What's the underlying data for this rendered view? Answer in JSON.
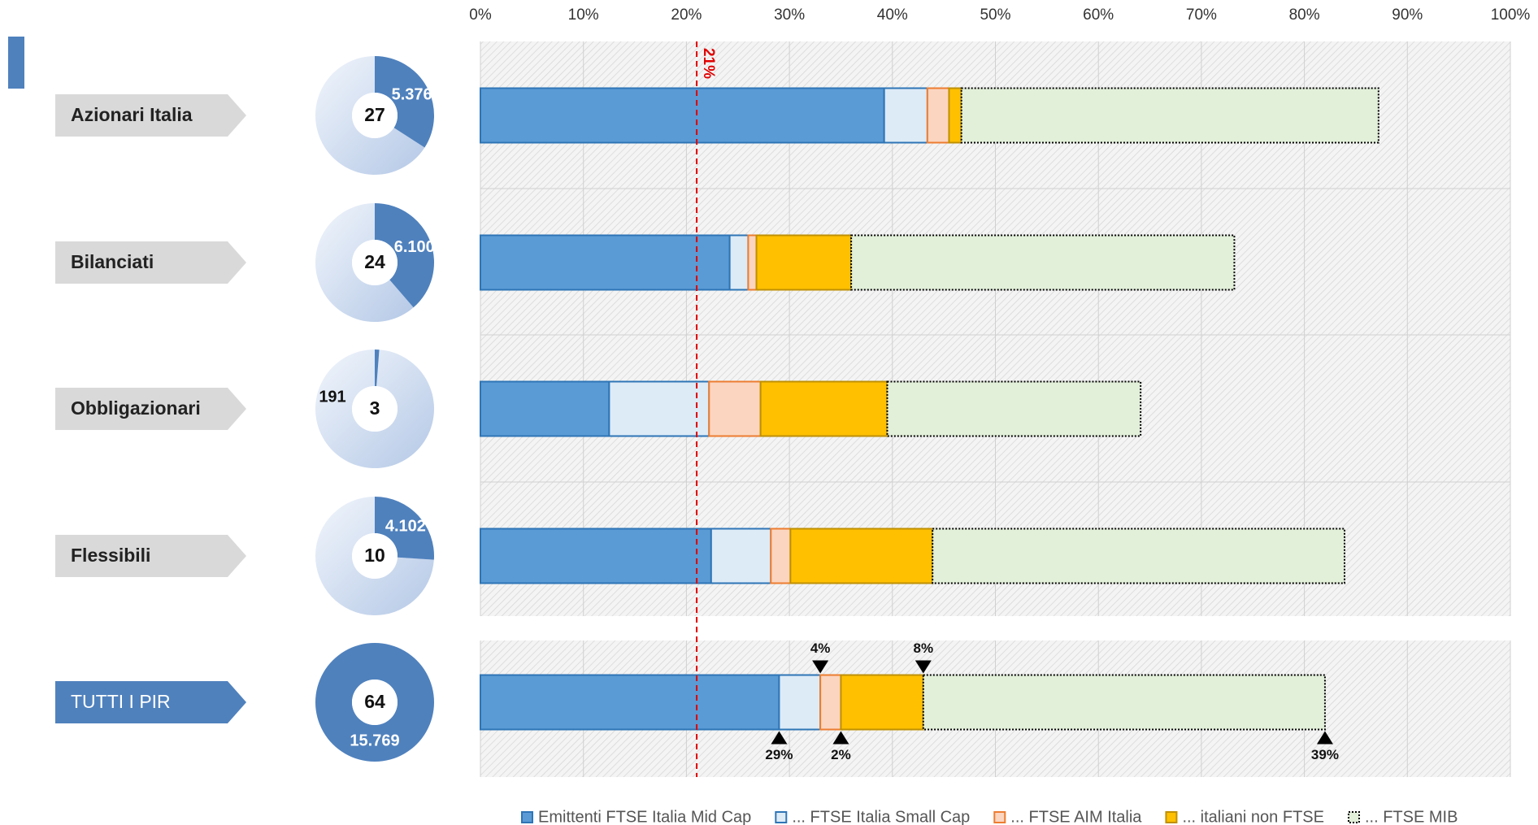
{
  "chart_data": {
    "type": "stacked_bar_horizontal",
    "categories": [
      "Azionari Italia",
      "Bilanciati",
      "Obbligazionari",
      "Flessibili",
      "TUTTI I PIR"
    ],
    "series": [
      {
        "name": "Emittenti FTSE Italia Mid Cap",
        "color": "#5b9bd5",
        "values": [
          39.2,
          24.2,
          12.5,
          22.4,
          29
        ],
        "value_labels": [
          null,
          null,
          null,
          null,
          "29%"
        ]
      },
      {
        "name": "... FTSE Italia Small Cap",
        "color": "#ddebf7",
        "values": [
          4.2,
          1.8,
          9.7,
          5.8,
          4
        ],
        "value_labels": [
          null,
          null,
          null,
          null,
          "4%"
        ]
      },
      {
        "name": "... FTSE AIM Italia",
        "color": "#fbd5c0",
        "values": [
          2.1,
          0.8,
          5,
          1.9,
          2
        ],
        "value_labels": [
          null,
          null,
          null,
          null,
          "2%"
        ]
      },
      {
        "name": "... italiani non FTSE",
        "color": "#ffc000",
        "values": [
          1.2,
          9.2,
          12.3,
          13.8,
          8
        ],
        "value_labels": [
          null,
          null,
          null,
          null,
          "8%"
        ]
      },
      {
        "name": "... FTSE MIB",
        "color": "#e2efd9",
        "values": [
          40.5,
          37.2,
          24.6,
          40,
          39
        ],
        "value_labels": [
          null,
          null,
          null,
          null,
          "39%"
        ]
      }
    ],
    "xlim": [
      0,
      100
    ],
    "xticks": [
      {
        "value": 0,
        "label": "0%"
      },
      {
        "value": 10,
        "label": "10%"
      },
      {
        "value": 20,
        "label": "20%"
      },
      {
        "value": 30,
        "label": "30%"
      },
      {
        "value": 40,
        "label": "40%"
      },
      {
        "value": 50,
        "label": "50%"
      },
      {
        "value": 60,
        "label": "60%"
      },
      {
        "value": 70,
        "label": "70%"
      },
      {
        "value": 80,
        "label": "80%"
      },
      {
        "value": 90,
        "label": "90%"
      },
      {
        "value": 100,
        "label": "100%"
      }
    ],
    "grid": true,
    "reference_line": {
      "value": 21,
      "label": "21%",
      "color": "#e00000"
    },
    "donuts": {
      "counts": [
        27,
        24,
        3,
        10,
        64
      ],
      "values": [
        5376,
        6100,
        191,
        4102,
        15769
      ],
      "value_labels": [
        "5.376",
        "6.100",
        "191",
        "4.102",
        "15.769"
      ],
      "color": "#4f81bd"
    },
    "legend": "bottom"
  }
}
